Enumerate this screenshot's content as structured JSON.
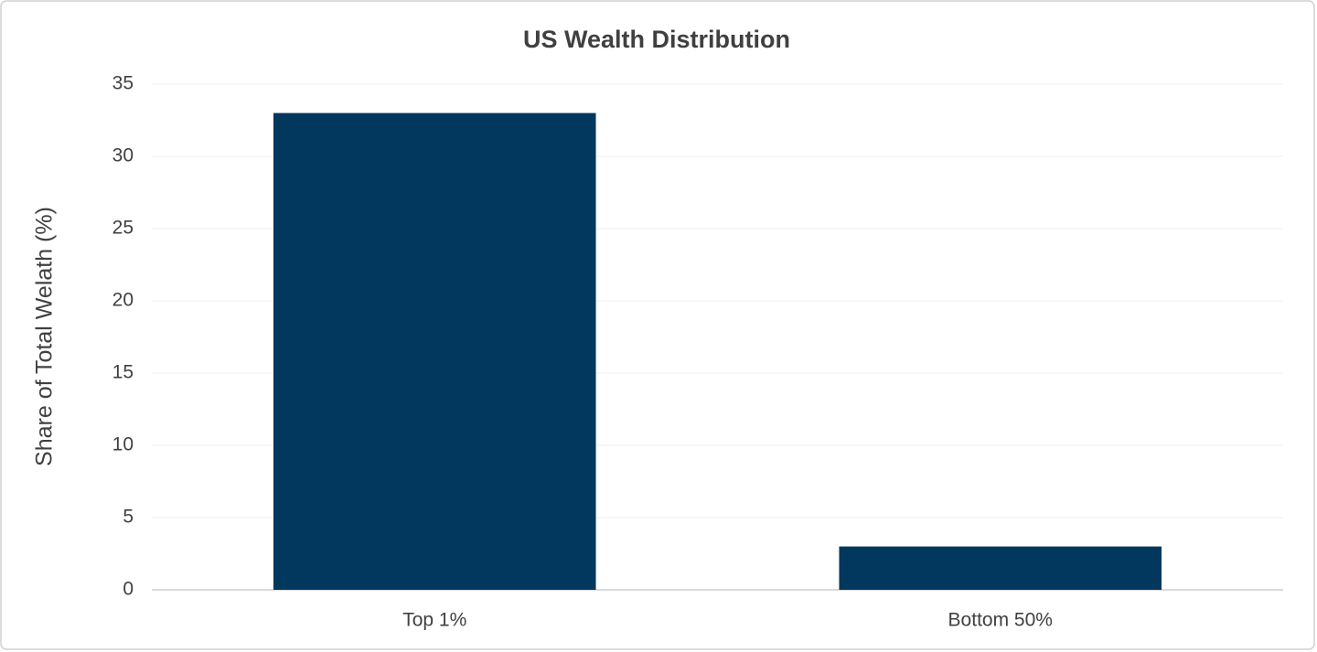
{
  "chart_data": {
    "type": "bar",
    "title": "US Wealth Distribution",
    "y_label": "Share of Total Welath (%)",
    "categories": [
      "Top 1%",
      "Bottom 50%"
    ],
    "values": [
      33,
      3
    ],
    "color": "#02375e",
    "ylim": [
      0,
      35
    ],
    "yticks": [
      0,
      5,
      10,
      15,
      20,
      25,
      30,
      35
    ],
    "grid": true
  }
}
